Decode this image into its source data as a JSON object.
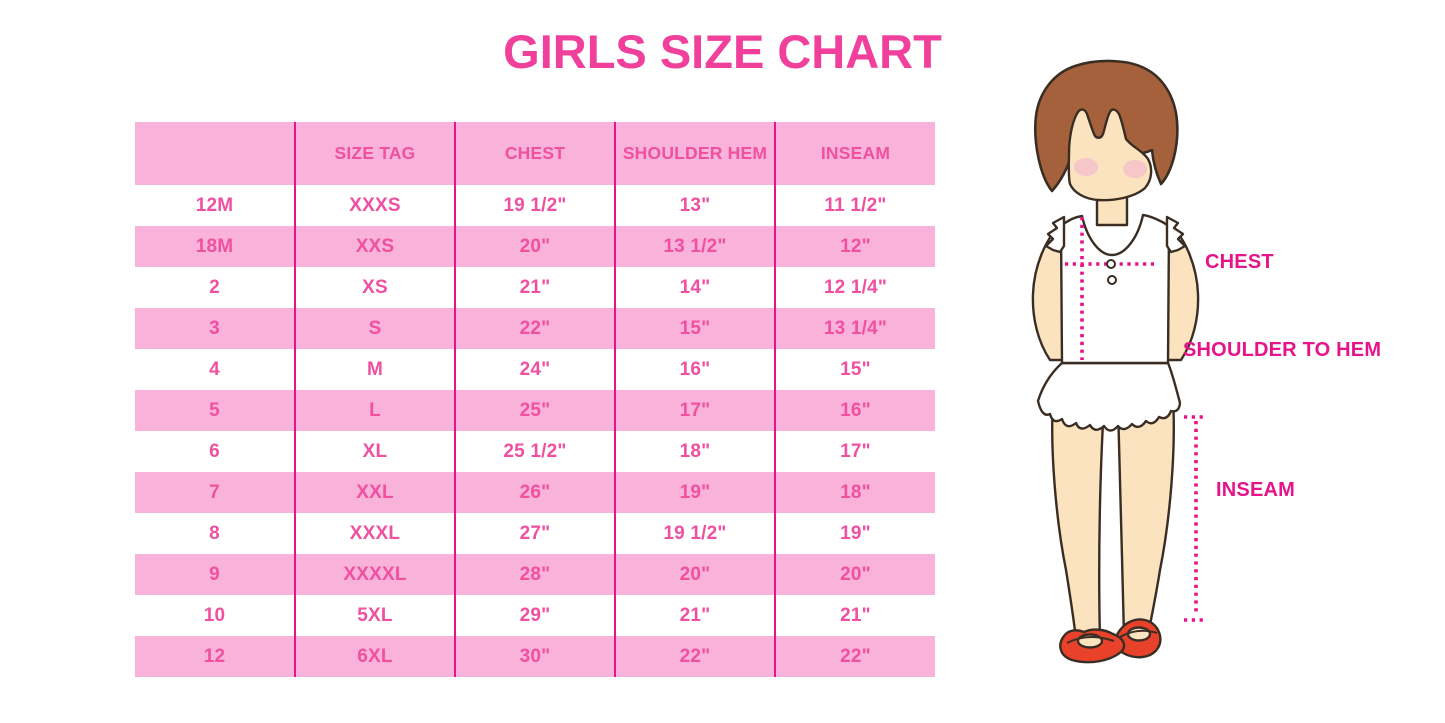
{
  "page_title": "GIRLS SIZE CHART",
  "colors": {
    "title_pink": "#f0409c",
    "table_text": "#f0509f",
    "row_pink": "#f9b2da",
    "magenta": "#e6148a",
    "hair": "#a5613c",
    "skin": "#fbe3c0",
    "blush": "#f5bfca",
    "outline": "#3a2e24",
    "shoe_red": "#e8432a"
  },
  "table": {
    "columns": [
      "",
      "SIZE TAG",
      "CHEST",
      "SHOULDER HEM",
      "INSEAM"
    ],
    "rows": [
      [
        "12M",
        "XXXS",
        "19 1/2\"",
        "13\"",
        "11 1/2\""
      ],
      [
        "18M",
        "XXS",
        "20\"",
        "13 1/2\"",
        "12\""
      ],
      [
        "2",
        "XS",
        "21\"",
        "14\"",
        "12 1/4\""
      ],
      [
        "3",
        "S",
        "22\"",
        "15\"",
        "13 1/4\""
      ],
      [
        "4",
        "M",
        "24\"",
        "16\"",
        "15\""
      ],
      [
        "5",
        "L",
        "25\"",
        "17\"",
        "16\""
      ],
      [
        "6",
        "XL",
        "25 1/2\"",
        "18\"",
        "17\""
      ],
      [
        "7",
        "XXL",
        "26\"",
        "19\"",
        "18\""
      ],
      [
        "8",
        "XXXL",
        "27\"",
        "19 1/2\"",
        "19\""
      ],
      [
        "9",
        "XXXXL",
        "28\"",
        "20\"",
        "20\""
      ],
      [
        "10",
        "5XL",
        "29\"",
        "21\"",
        "21\""
      ],
      [
        "12",
        "6XL",
        "30\"",
        "22\"",
        "22\""
      ]
    ]
  },
  "diagram": {
    "labels": {
      "chest": "CHEST",
      "shoulder_to_hem": "SHOULDER TO HEM",
      "inseam": "INSEAM"
    }
  }
}
